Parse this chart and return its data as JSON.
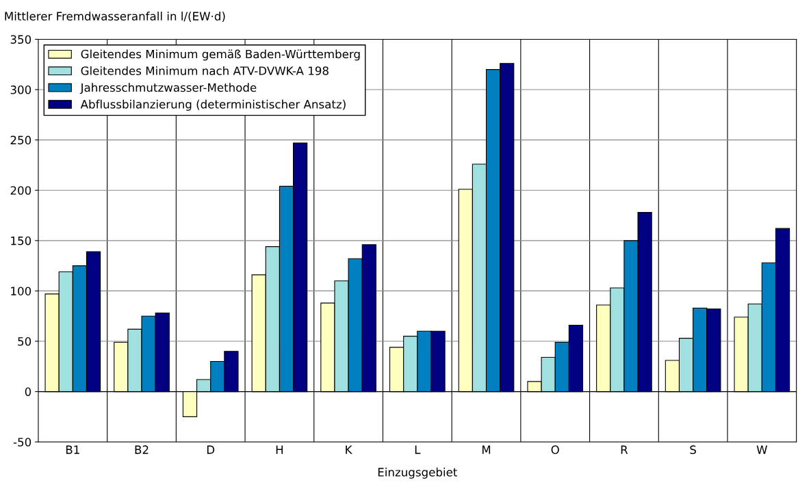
{
  "chart_data": {
    "type": "bar",
    "ylabel": "Mittlerer Fremdwasseranfall in l/(EW·d)",
    "xlabel": "Einzugsgebiet",
    "categories": [
      "B1",
      "B2",
      "D",
      "H",
      "K",
      "L",
      "M",
      "O",
      "R",
      "S",
      "W"
    ],
    "series": [
      {
        "name": "Gleitendes Minimum gemäß Baden-Württemberg",
        "color": "#ffffc0",
        "values": [
          97,
          49,
          -25,
          116,
          88,
          44,
          201,
          10,
          86,
          31,
          74
        ]
      },
      {
        "name": "Gleitendes Minimum nach ATV-DVWK-A 198",
        "color": "#a0e0e0",
        "values": [
          119,
          62,
          12,
          144,
          110,
          55,
          226,
          34,
          103,
          53,
          87
        ]
      },
      {
        "name": "Jahresschmutzwasser-Methode",
        "color": "#0080c0",
        "values": [
          125,
          75,
          30,
          204,
          132,
          60,
          320,
          49,
          150,
          83,
          128
        ]
      },
      {
        "name": "Abflussbilanzierung (deterministischer Ansatz)",
        "color": "#000080",
        "values": [
          139,
          78,
          40,
          247,
          146,
          60,
          326,
          66,
          178,
          82,
          162
        ]
      }
    ],
    "ylim": [
      -50,
      350
    ],
    "yticks": [
      -50,
      0,
      50,
      100,
      150,
      200,
      250,
      300,
      350
    ],
    "grid": true,
    "legend": "top left"
  }
}
